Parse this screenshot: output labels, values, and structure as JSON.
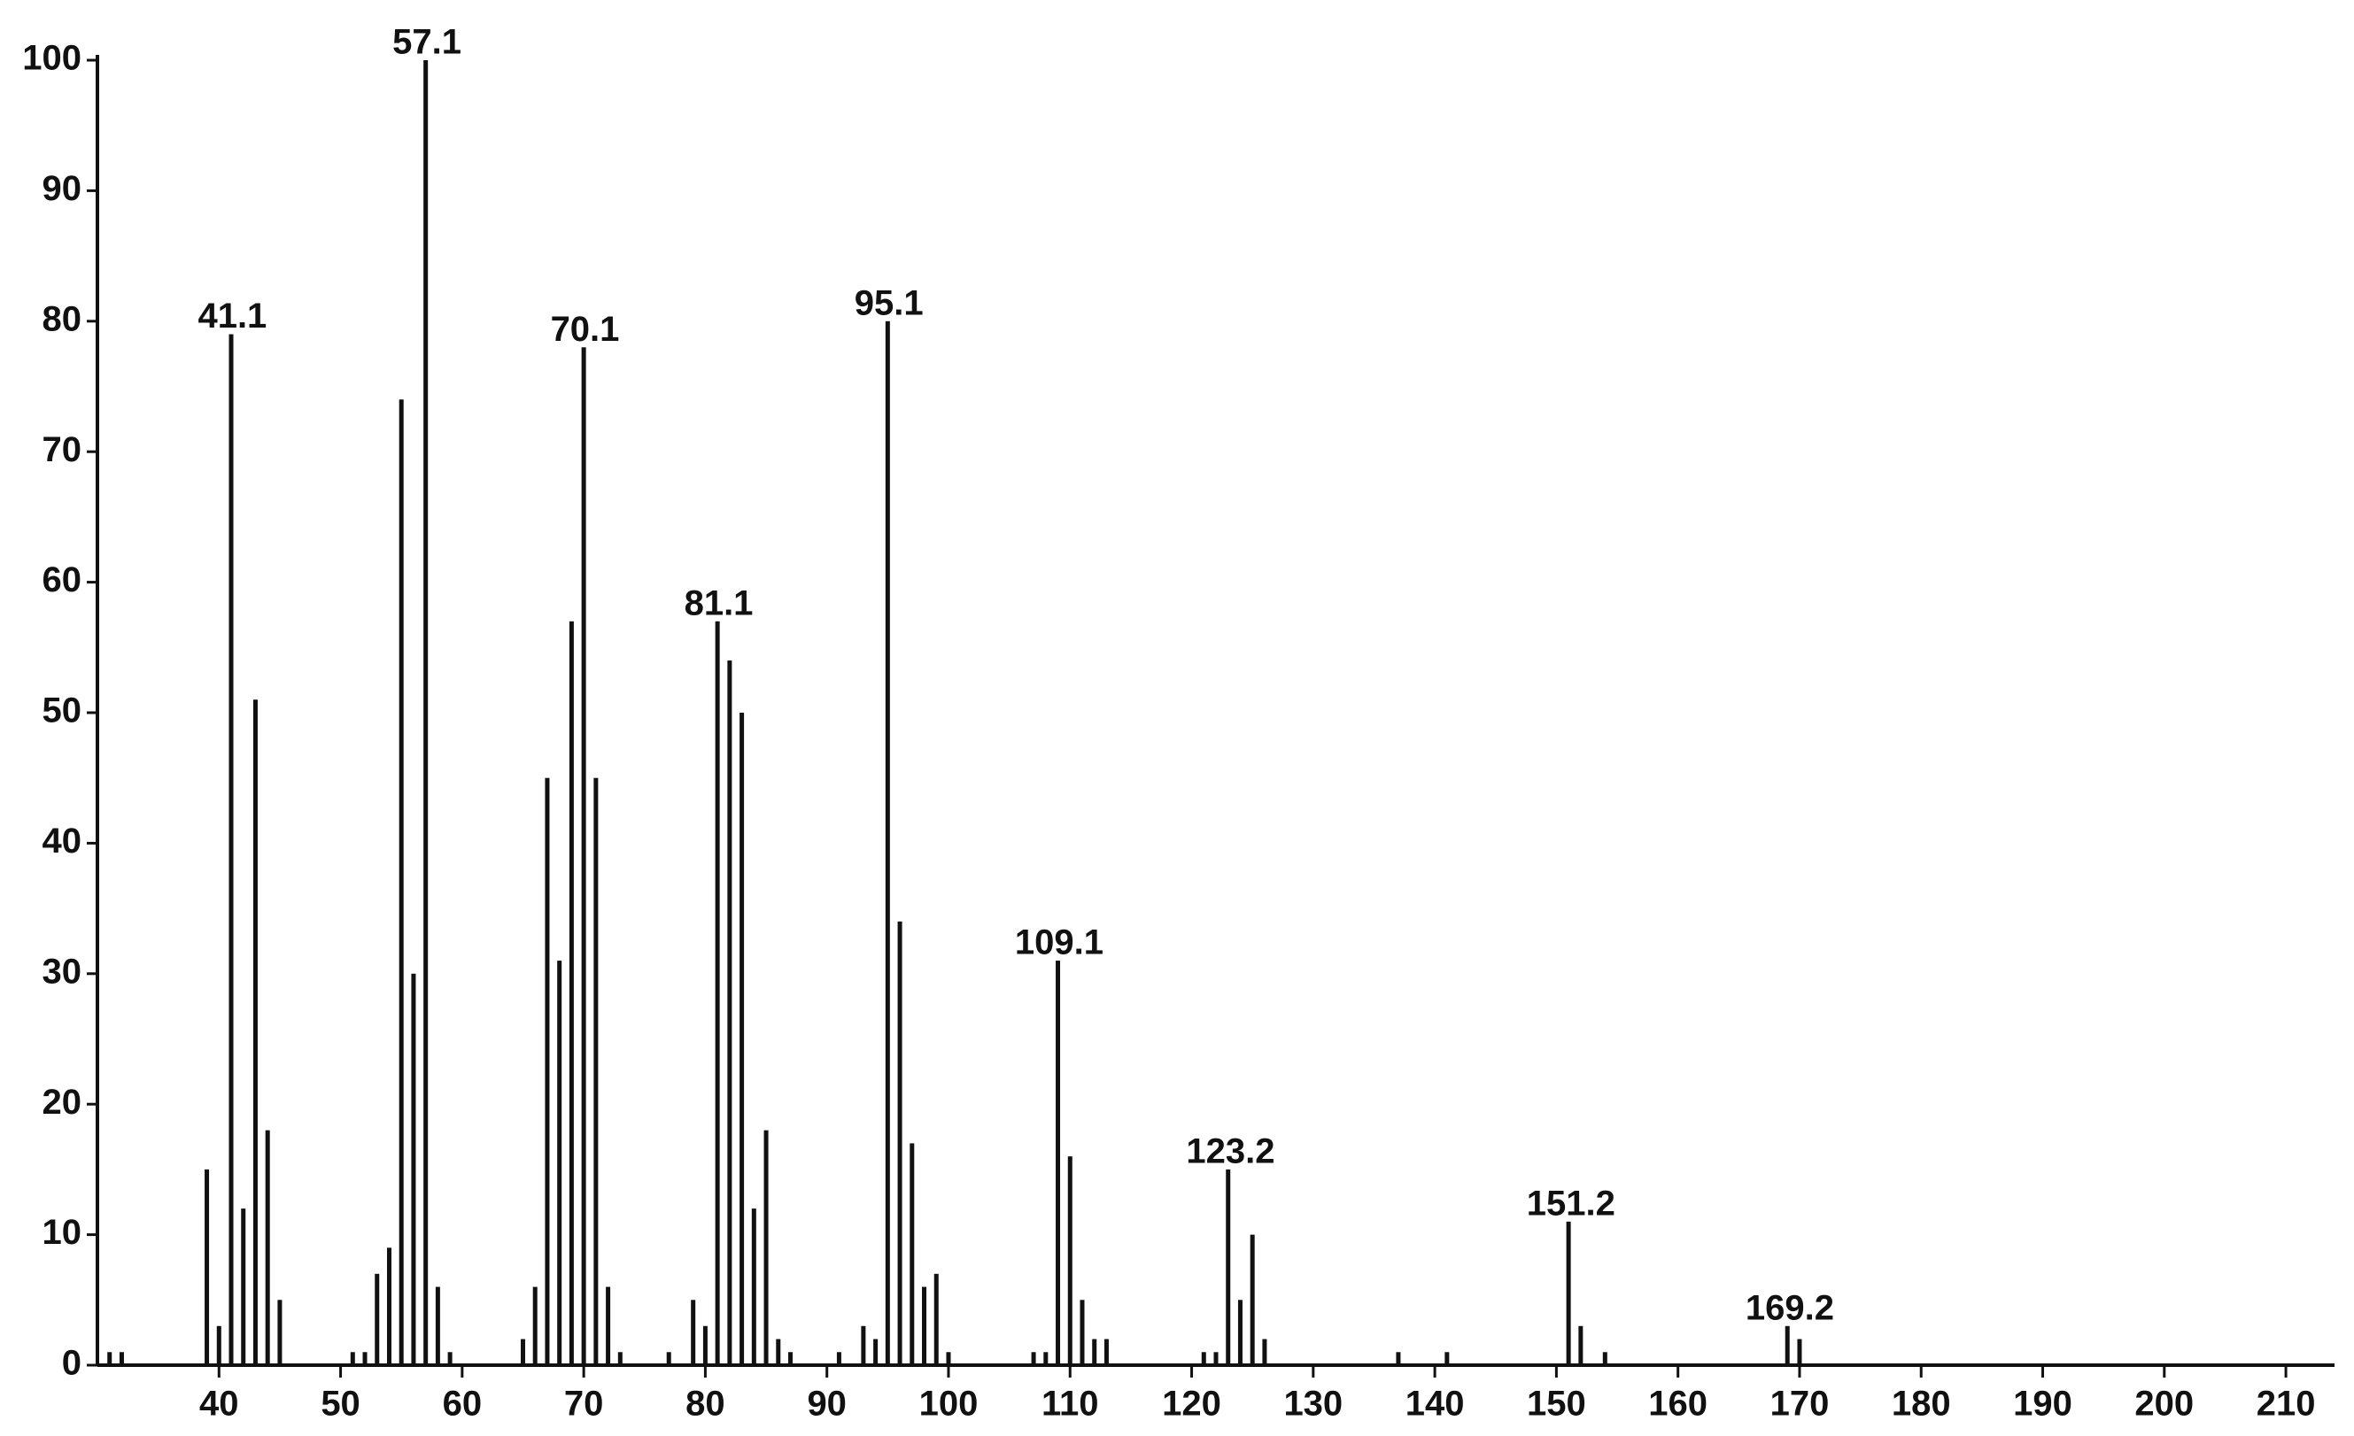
{
  "chart_data": {
    "type": "stem",
    "x": [
      31,
      32,
      39,
      40,
      41,
      42,
      43,
      44,
      45,
      51,
      52,
      53,
      54,
      55,
      56,
      57,
      58,
      59,
      65,
      66,
      67,
      68,
      69,
      70,
      71,
      72,
      73,
      77,
      79,
      80,
      81,
      82,
      83,
      84,
      85,
      86,
      87,
      91,
      93,
      94,
      95,
      96,
      97,
      98,
      99,
      100,
      107,
      108,
      109,
      110,
      111,
      112,
      113,
      121,
      122,
      123,
      124,
      125,
      126,
      137,
      141,
      151,
      152,
      154,
      169,
      170
    ],
    "values": [
      1,
      1,
      15,
      3,
      79,
      12,
      51,
      18,
      5,
      1,
      1,
      7,
      9,
      74,
      30,
      100,
      6,
      1,
      2,
      6,
      45,
      31,
      57,
      78,
      45,
      6,
      1,
      1,
      5,
      3,
      57,
      54,
      50,
      12,
      18,
      2,
      1,
      1,
      3,
      2,
      80,
      34,
      17,
      6,
      7,
      1,
      1,
      1,
      31,
      16,
      5,
      2,
      2,
      1,
      1,
      15,
      5,
      10,
      2,
      1,
      1,
      11,
      3,
      1,
      3,
      2
    ],
    "color": "#111111",
    "annotations": [
      {
        "x": 41.1,
        "y": 79
      },
      {
        "x": 57.1,
        "y": 100
      },
      {
        "x": 70.1,
        "y": 78
      },
      {
        "x": 81.1,
        "y": 57
      },
      {
        "x": 95.1,
        "y": 80
      },
      {
        "x": 109.1,
        "y": 31
      },
      {
        "x": 123.2,
        "y": 15
      },
      {
        "x": 151.2,
        "y": 11
      },
      {
        "x": 169.2,
        "y": 3
      }
    ],
    "xlim": [
      30,
      214
    ],
    "xticks": [
      40,
      50,
      60,
      70,
      80,
      90,
      100,
      110,
      120,
      130,
      140,
      150,
      160,
      170,
      180,
      190,
      200,
      210
    ],
    "ylim": [
      0,
      100
    ],
    "yticks": [
      0,
      10,
      20,
      30,
      40,
      50,
      60,
      70,
      80,
      90,
      100
    ]
  }
}
